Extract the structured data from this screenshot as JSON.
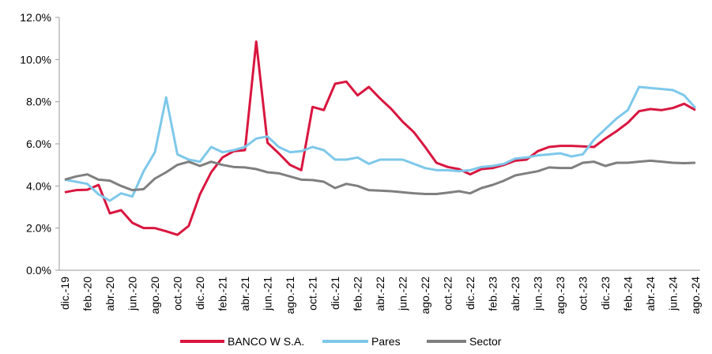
{
  "chart_data": {
    "type": "line",
    "categories": [
      "dic.-19",
      null,
      "feb.-20",
      null,
      "abr.-20",
      null,
      "jun.-20",
      null,
      "ago.-20",
      null,
      "oct.-20",
      null,
      "dic.-20",
      null,
      "feb.-21",
      null,
      "abr.-21",
      null,
      "jun.-21",
      null,
      "ago.-21",
      null,
      "oct.-21",
      null,
      "dic.-21",
      null,
      "feb.-22",
      null,
      "abr.-22",
      null,
      "jun.-22",
      null,
      "ago.-22",
      null,
      "oct.-22",
      null,
      "dic.-22",
      null,
      "feb.-23",
      null,
      "abr.-23",
      null,
      "jun.-23",
      null,
      "ago.-23",
      null,
      "oct.-23",
      null,
      "dic.-23",
      null,
      "feb.-24",
      null,
      "abr.-24",
      null,
      "jun.-24",
      null,
      "ago.-24"
    ],
    "series": [
      {
        "name": "BANCO W S.A.",
        "color": "#d9163f",
        "values": [
          3.7,
          3.8,
          3.82,
          4.05,
          2.7,
          2.85,
          2.25,
          2.0,
          2.0,
          1.85,
          1.68,
          2.1,
          3.6,
          4.65,
          5.35,
          5.65,
          5.7,
          10.85,
          6.05,
          5.55,
          5.0,
          4.75,
          7.75,
          7.6,
          8.85,
          8.95,
          8.3,
          8.7,
          8.15,
          7.65,
          7.05,
          6.55,
          5.85,
          5.1,
          4.9,
          4.8,
          4.55,
          4.8,
          4.85,
          5.0,
          5.2,
          5.25,
          5.65,
          5.85,
          5.9,
          5.9,
          5.88,
          5.85,
          6.25,
          6.6,
          7.0,
          7.55,
          7.65,
          7.6,
          7.7,
          7.9,
          7.6
        ]
      },
      {
        "name": "Pares",
        "color": "#7ec8ea",
        "values": [
          4.3,
          4.2,
          4.1,
          3.6,
          3.3,
          3.65,
          3.5,
          4.7,
          5.6,
          8.2,
          5.5,
          5.25,
          5.15,
          5.85,
          5.6,
          5.7,
          5.85,
          6.25,
          6.35,
          5.85,
          5.6,
          5.65,
          5.85,
          5.7,
          5.25,
          5.25,
          5.35,
          5.05,
          5.25,
          5.25,
          5.25,
          5.05,
          4.85,
          4.75,
          4.75,
          4.7,
          4.75,
          4.9,
          4.95,
          5.05,
          5.3,
          5.35,
          5.45,
          5.5,
          5.55,
          5.4,
          5.5,
          6.2,
          6.7,
          7.2,
          7.6,
          8.7,
          8.65,
          8.6,
          8.55,
          8.3,
          7.7
        ]
      },
      {
        "name": "Sector",
        "color": "#7f7f7f",
        "values": [
          4.3,
          4.45,
          4.55,
          4.3,
          4.25,
          4.0,
          3.8,
          3.85,
          4.35,
          4.65,
          5.0,
          5.15,
          4.95,
          5.15,
          5.0,
          4.9,
          4.88,
          4.8,
          4.65,
          4.6,
          4.45,
          4.3,
          4.28,
          4.2,
          3.9,
          4.1,
          4.0,
          3.8,
          3.78,
          3.75,
          3.7,
          3.65,
          3.62,
          3.62,
          3.68,
          3.75,
          3.65,
          3.9,
          4.05,
          4.25,
          4.5,
          4.6,
          4.7,
          4.88,
          4.85,
          4.85,
          5.1,
          5.15,
          4.95,
          5.1,
          5.1,
          5.15,
          5.2,
          5.15,
          5.1,
          5.08,
          5.1
        ]
      }
    ],
    "ylim": [
      0,
      12
    ],
    "yticks": [
      {
        "value": 0,
        "label": "0.0%"
      },
      {
        "value": 2,
        "label": "2.0%"
      },
      {
        "value": 4,
        "label": "4.0%"
      },
      {
        "value": 6,
        "label": "6.0%"
      },
      {
        "value": 8,
        "label": "8.0%"
      },
      {
        "value": 10,
        "label": "10.0%"
      },
      {
        "value": 12,
        "label": "12.0%"
      }
    ],
    "legend": "bottom"
  }
}
